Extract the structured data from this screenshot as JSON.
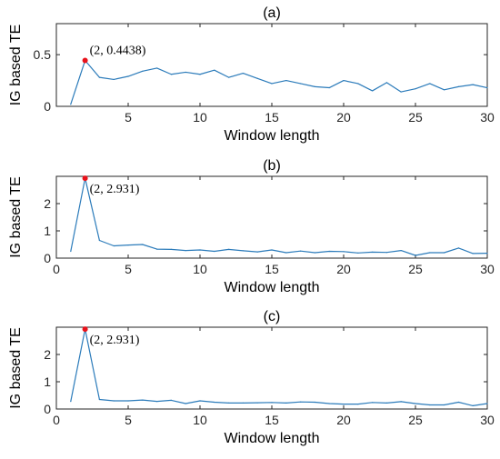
{
  "chart_data": [
    {
      "type": "line",
      "title": "(a)",
      "xlabel": "Window length",
      "ylabel": "IG based TE",
      "xlim": [
        0,
        30
      ],
      "ylim": [
        0,
        0.8
      ],
      "xticks": [
        5,
        10,
        15,
        20,
        25,
        30
      ],
      "xtick_labels": [
        "5",
        "10",
        "15",
        "20",
        "25",
        "30"
      ],
      "yticks": [
        0,
        0.5
      ],
      "ytick_labels": [
        "0",
        "0.5"
      ],
      "grid": false,
      "line_color": "#2b7bba",
      "marker_color": "#e8121b",
      "series": [
        {
          "x": [
            1,
            2,
            3,
            4,
            5,
            6,
            7,
            8,
            9,
            10,
            11,
            12,
            13,
            14,
            15,
            16,
            17,
            18,
            19,
            20,
            21,
            22,
            23,
            24,
            25,
            26,
            27,
            28,
            29,
            30
          ],
          "values": [
            0.02,
            0.4438,
            0.28,
            0.26,
            0.29,
            0.34,
            0.37,
            0.31,
            0.33,
            0.31,
            0.35,
            0.28,
            0.32,
            0.27,
            0.22,
            0.25,
            0.22,
            0.19,
            0.18,
            0.25,
            0.22,
            0.15,
            0.23,
            0.14,
            0.17,
            0.22,
            0.16,
            0.19,
            0.21,
            0.18
          ]
        }
      ],
      "annotation": {
        "x": 2,
        "y": 0.4438,
        "text": "(2, 0.4438)"
      }
    },
    {
      "type": "line",
      "title": "(b)",
      "xlabel": "Window length",
      "ylabel": "IG based TE",
      "xlim": [
        0,
        30
      ],
      "ylim": [
        0,
        3
      ],
      "xticks": [
        0,
        5,
        10,
        15,
        20,
        25,
        30
      ],
      "xtick_labels": [
        "0",
        "5",
        "10",
        "15",
        "20",
        "25",
        "30"
      ],
      "yticks": [
        0,
        1,
        2
      ],
      "ytick_labels": [
        "0",
        "1",
        "2"
      ],
      "grid": false,
      "line_color": "#2b7bba",
      "marker_color": "#e8121b",
      "series": [
        {
          "x": [
            1,
            2,
            3,
            4,
            5,
            6,
            7,
            8,
            9,
            10,
            11,
            12,
            13,
            14,
            15,
            16,
            17,
            18,
            19,
            20,
            21,
            22,
            23,
            24,
            25,
            26,
            27,
            28,
            29,
            30
          ],
          "values": [
            0.25,
            2.931,
            0.65,
            0.45,
            0.48,
            0.5,
            0.33,
            0.32,
            0.28,
            0.3,
            0.25,
            0.32,
            0.27,
            0.23,
            0.3,
            0.2,
            0.26,
            0.2,
            0.25,
            0.24,
            0.19,
            0.22,
            0.21,
            0.28,
            0.1,
            0.2,
            0.2,
            0.37,
            0.17,
            0.18
          ]
        }
      ],
      "annotation": {
        "x": 2,
        "y": 2.931,
        "text": "(2, 2.931)"
      }
    },
    {
      "type": "line",
      "title": "(c)",
      "xlabel": "Window length",
      "ylabel": "IG based TE",
      "xlim": [
        0,
        30
      ],
      "ylim": [
        0,
        3
      ],
      "xticks": [
        0,
        5,
        10,
        15,
        20,
        25,
        30
      ],
      "xtick_labels": [
        "0",
        "5",
        "10",
        "15",
        "20",
        "25",
        "30"
      ],
      "yticks": [
        0,
        1,
        2
      ],
      "ytick_labels": [
        "0",
        "1",
        "2"
      ],
      "grid": false,
      "line_color": "#2b7bba",
      "marker_color": "#e8121b",
      "series": [
        {
          "x": [
            1,
            2,
            3,
            4,
            5,
            6,
            7,
            8,
            9,
            10,
            11,
            12,
            13,
            14,
            15,
            16,
            17,
            18,
            19,
            20,
            21,
            22,
            23,
            24,
            25,
            26,
            27,
            28,
            29,
            30
          ],
          "values": [
            0.28,
            2.931,
            0.35,
            0.3,
            0.3,
            0.33,
            0.28,
            0.32,
            0.2,
            0.3,
            0.25,
            0.22,
            0.22,
            0.23,
            0.24,
            0.22,
            0.26,
            0.25,
            0.2,
            0.18,
            0.18,
            0.24,
            0.22,
            0.27,
            0.2,
            0.15,
            0.15,
            0.25,
            0.12,
            0.2
          ]
        }
      ],
      "annotation": {
        "x": 2,
        "y": 2.931,
        "text": "(2, 2.931)"
      }
    }
  ]
}
